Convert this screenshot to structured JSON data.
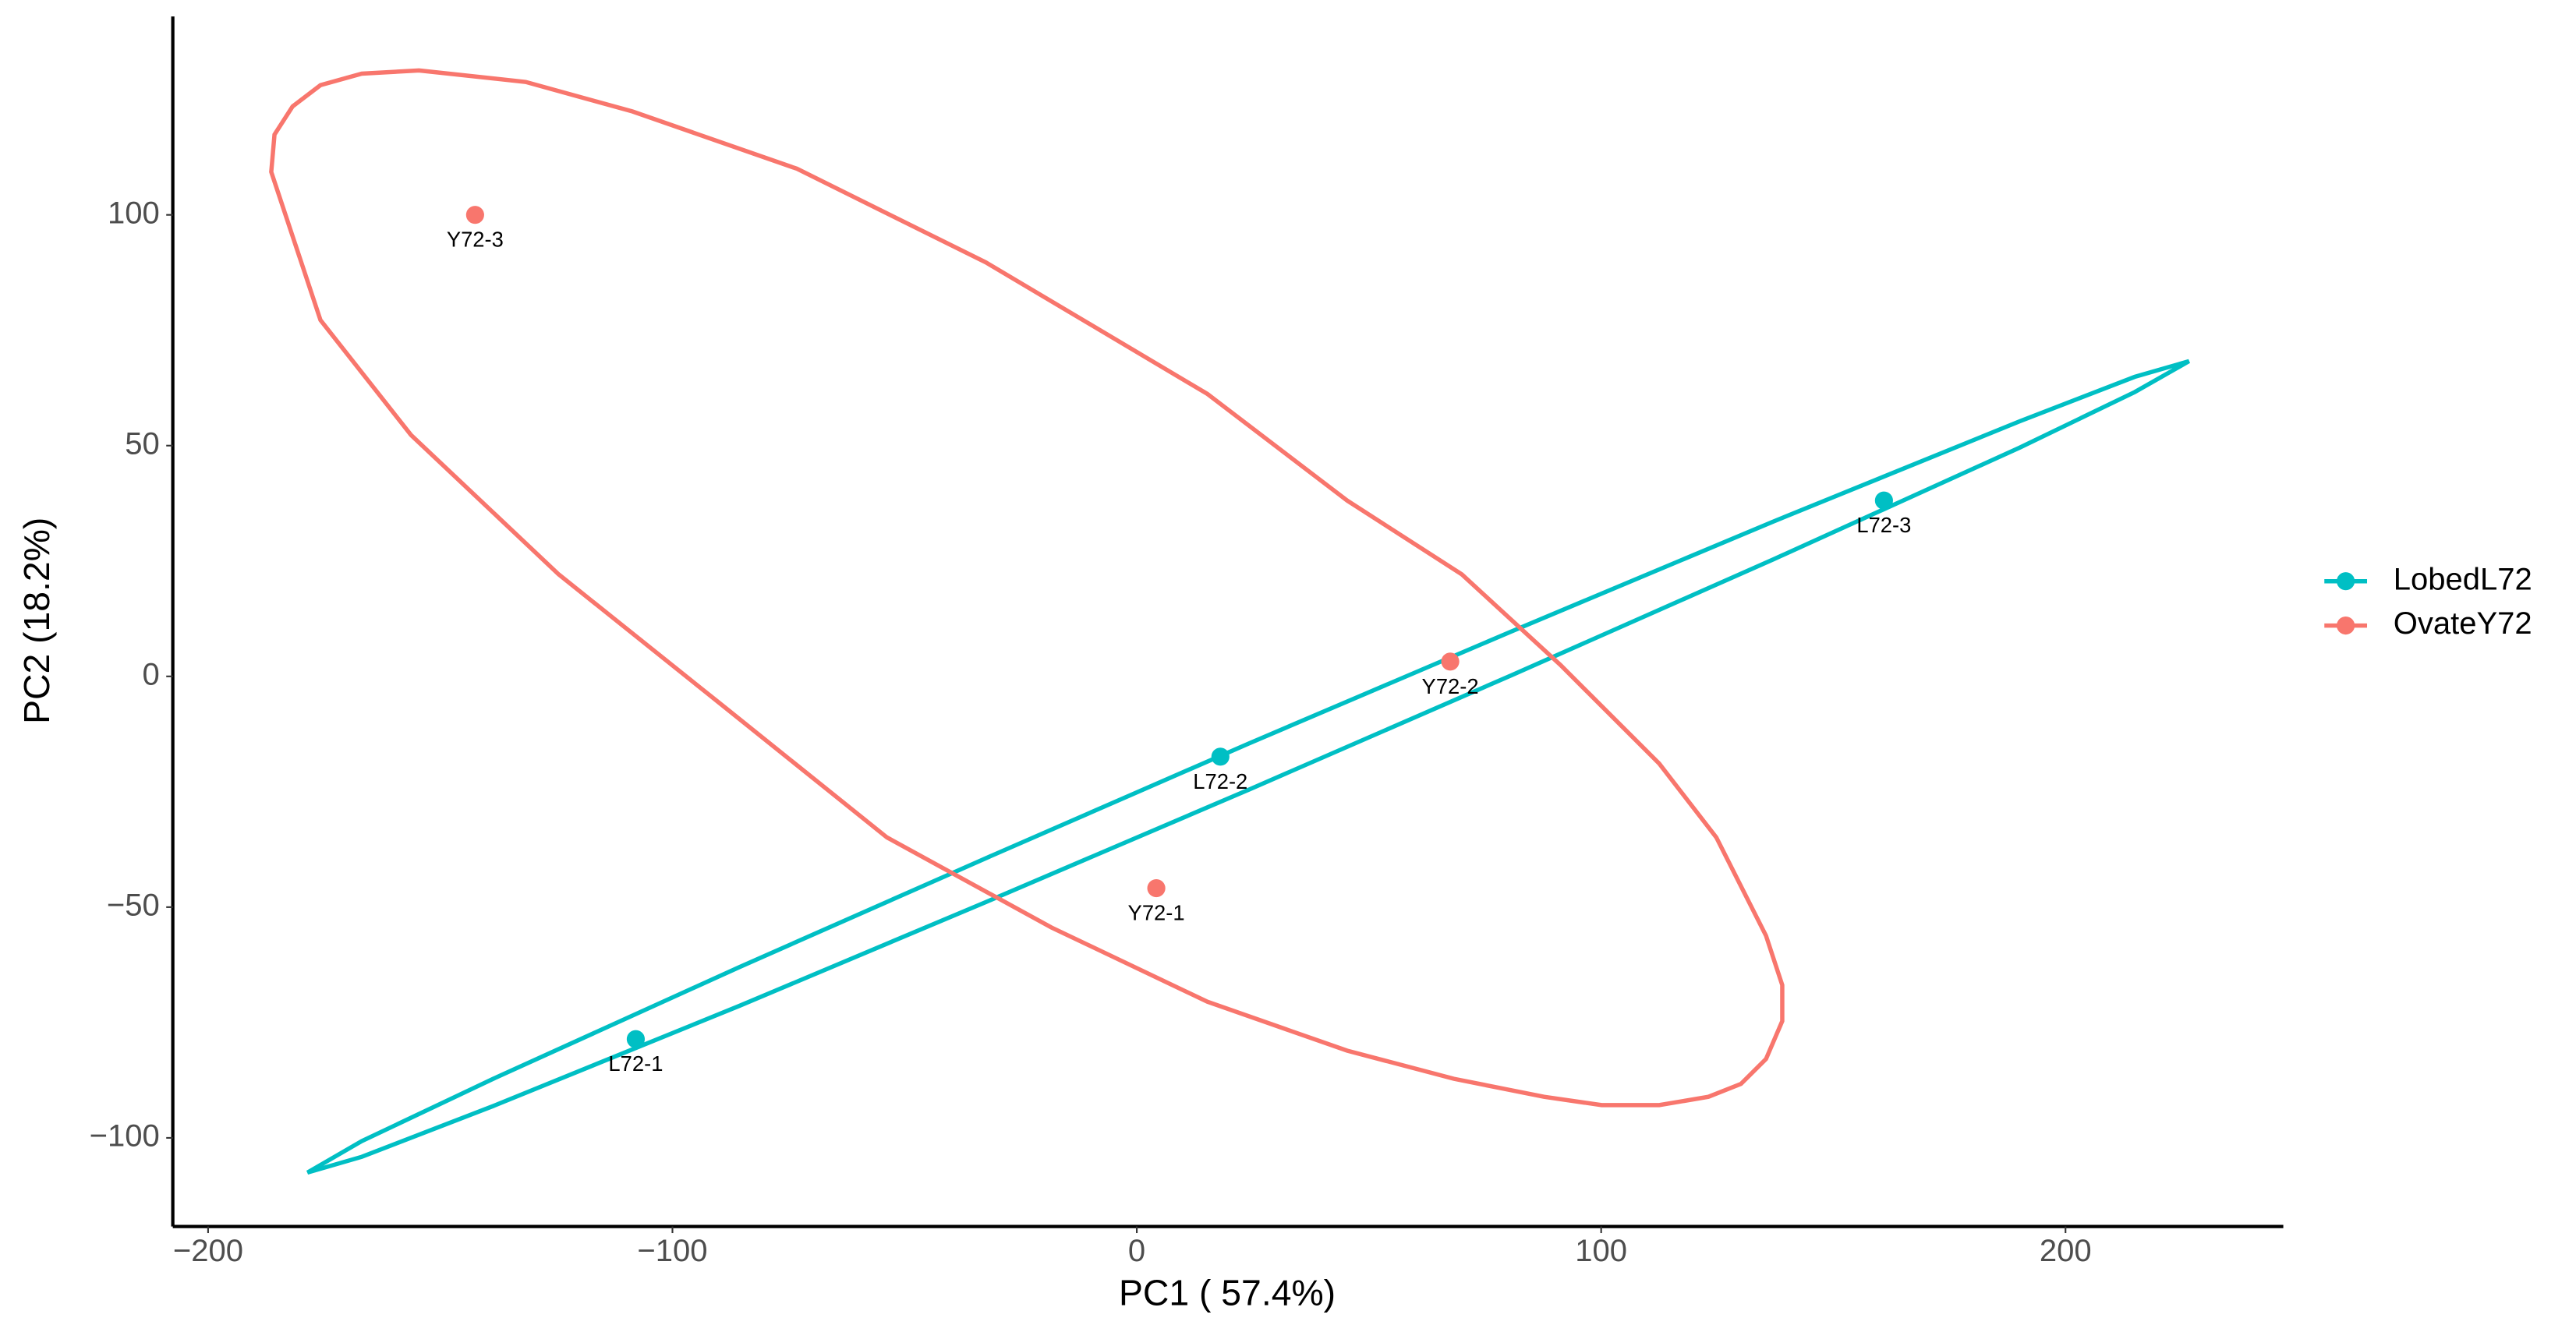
{
  "chart_data": {
    "type": "scatter",
    "x_label": "PC1 ( 57.4%)",
    "y_label": "PC2 (18.2%)",
    "xlim": [
      -207.6,
      246.9
    ],
    "ylim": [
      -119.2,
      143
    ],
    "xticks": [
      {
        "value": -200,
        "label": "−200"
      },
      {
        "value": -100,
        "label": "−100"
      },
      0,
      100,
      200
    ],
    "yticks": [
      {
        "value": -100,
        "label": "−100"
      },
      {
        "value": -50,
        "label": "−50"
      },
      0,
      50,
      100
    ],
    "grid": false,
    "legend": "right",
    "series": [
      {
        "name": "LobedL72",
        "color": "#00BFC4",
        "x": [
          -107.9,
          18.0,
          160.9
        ],
        "values": [
          -78.6,
          -17.4,
          38.1
        ],
        "point_labels": [
          "L72-1",
          "L72-2",
          "L72-3"
        ],
        "ellipse": {
          "x": [
            -178.6,
            -166.9,
            -138.6,
            -85.6,
            -32.5,
            24.0,
            80.6,
            137.2,
            190.2,
            214.9,
            226.6,
            214.9,
            190.2,
            137.2,
            80.6,
            24.0,
            -32.5,
            -85.6,
            -138.6,
            -166.9
          ],
          "y": [
            -107.5,
            -100.7,
            -87.2,
            -63.0,
            -39.4,
            -14.6,
            9.7,
            33.6,
            55.3,
            64.9,
            68.3,
            61.6,
            49.6,
            25.4,
            0.2,
            -24.6,
            -48.9,
            -71.4,
            -93.1,
            -104.1
          ]
        }
      },
      {
        "name": "OvateY72",
        "color": "#F8766D",
        "x": [
          4.2,
          67.5,
          -142.5
        ],
        "values": [
          -45.9,
          3.2,
          100
        ],
        "point_labels": [
          "Y72-1",
          "Y72-2",
          "Y72-3"
        ],
        "ellipse": {
          "x": [
            -154.6,
            -131.6,
            -108.6,
            -73.2,
            -32.5,
            15.2,
            45.3,
            70.0,
            91.2,
            112.5,
            124.8,
            135.5,
            139.0,
            139.0,
            135.5,
            130.1,
            123.1,
            112.5,
            100.1,
            87.7,
            68.3,
            45.3,
            15.2,
            -18.4,
            -53.8,
            -89.1,
            -124.5,
            -156.3,
            -175.8,
            -186.4,
            -185.7,
            -181.8,
            -175.8,
            -166.9
          ],
          "y": [
            131.3,
            128.8,
            122.4,
            110.0,
            89.7,
            61.2,
            38.1,
            22.1,
            2.5,
            -18.9,
            -34.9,
            -56.2,
            -66.9,
            -74.7,
            -82.9,
            -88.3,
            -91.1,
            -92.9,
            -92.9,
            -91.1,
            -87.2,
            -81.1,
            -70.5,
            -54.4,
            -34.9,
            -6.4,
            22.1,
            52.3,
            77.2,
            109.3,
            117.4,
            123.5,
            128.1,
            130.6
          ]
        }
      }
    ]
  }
}
